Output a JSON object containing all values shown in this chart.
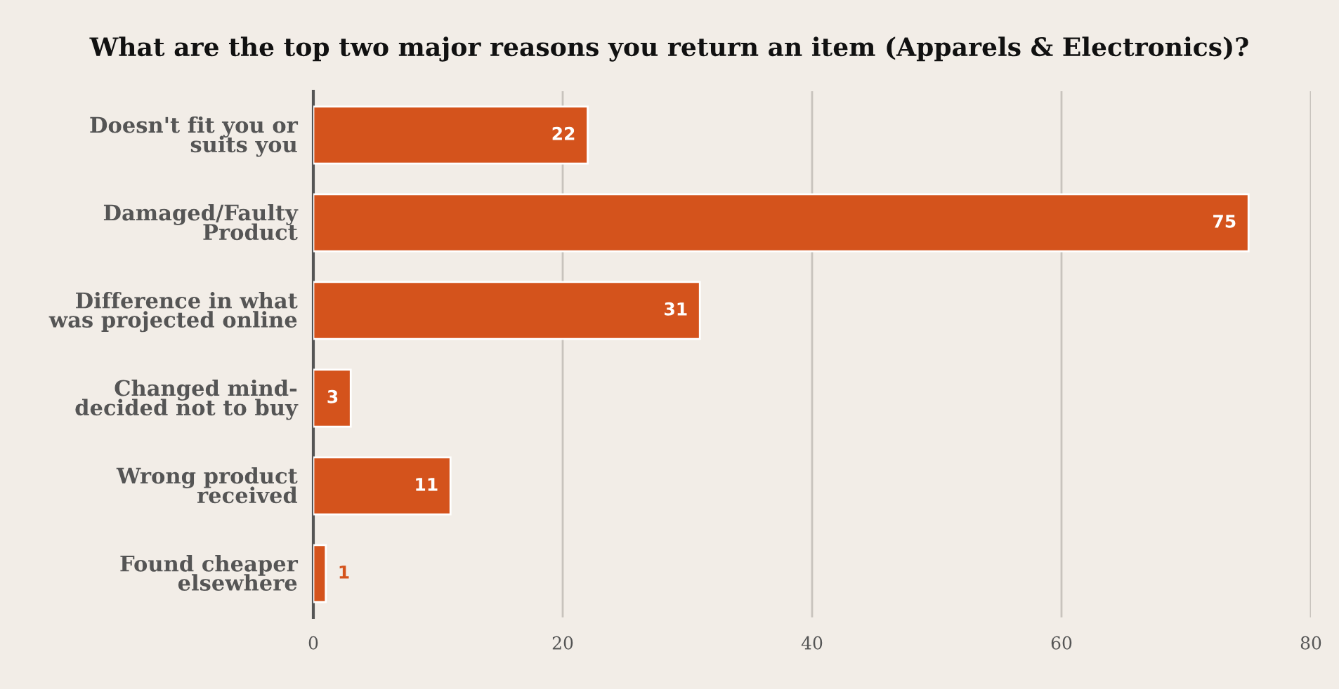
{
  "chart_data": {
    "type": "bar",
    "orientation": "horizontal",
    "title": "What are the top two major reasons you return an item (Apparels & Electronics)?",
    "categories": [
      "Doesn't fit you or\nsuits you",
      "Damaged/Faulty\nProduct",
      "Difference in what\nwas projected online",
      "Changed mind-\ndecided not to buy",
      "Wrong product\nreceived",
      "Found cheaper\nelsewhere"
    ],
    "values": [
      22,
      75,
      31,
      3,
      11,
      1
    ],
    "color": "#d4531c",
    "xlim": [
      0,
      80
    ],
    "xticks": [
      0,
      20,
      40,
      60,
      80
    ],
    "grid": "x",
    "data_labels": true,
    "legend": false
  }
}
